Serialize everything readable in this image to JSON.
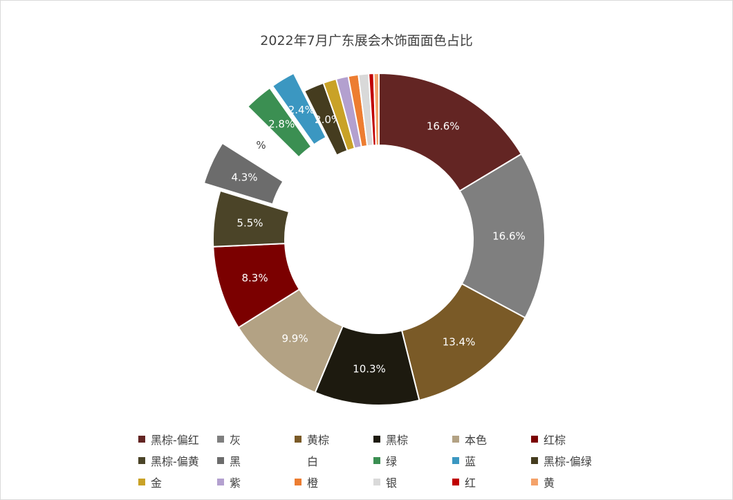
{
  "chart_data": {
    "type": "pie",
    "variant": "doughnut",
    "title": "2022年7月广东展会木饰面面色占比",
    "legend_position": "bottom",
    "series": [
      {
        "name": "黑棕-偏红",
        "value": 16.6,
        "label": "16.6%",
        "color": "#632523"
      },
      {
        "name": "灰",
        "value": 16.6,
        "label": "16.6%",
        "color": "#7f7f7f"
      },
      {
        "name": "黄棕",
        "value": 13.4,
        "label": "13.4%",
        "color": "#7a5a27"
      },
      {
        "name": "黑棕",
        "value": 10.3,
        "label": "10.3%",
        "color": "#1d1a0f"
      },
      {
        "name": "本色",
        "value": 9.9,
        "label": "9.9%",
        "color": "#b3a284"
      },
      {
        "name": "红棕",
        "value": 8.3,
        "label": "8.3%",
        "color": "#7b0000"
      },
      {
        "name": "黑棕-偏黄",
        "value": 5.5,
        "label": "5.5%",
        "color": "#4b4428"
      },
      {
        "name": "黑",
        "value": 4.3,
        "label": "4.3%",
        "color": "#6c6c6c"
      },
      {
        "name": "白",
        "value": 3.5,
        "label": "%",
        "color": "#ffffff"
      },
      {
        "name": "绿",
        "value": 2.8,
        "label": "2.8%",
        "color": "#3b8f52"
      },
      {
        "name": "蓝",
        "value": 2.4,
        "label": "2.4%",
        "color": "#3b97c1"
      },
      {
        "name": "黑棕-偏绿",
        "value": 2.0,
        "label": "2.0%",
        "color": "#453c1f"
      },
      {
        "name": "金",
        "value": 1.3,
        "label": "",
        "color": "#c9a227"
      },
      {
        "name": "紫",
        "value": 1.2,
        "label": "",
        "color": "#b3a0cf"
      },
      {
        "name": "橙",
        "value": 1.0,
        "label": "",
        "color": "#ed7d31"
      },
      {
        "name": "银",
        "value": 1.0,
        "label": "",
        "color": "#d9d9d9"
      },
      {
        "name": "红",
        "value": 0.5,
        "label": "",
        "color": "#c00000"
      },
      {
        "name": "黄",
        "value": 0.5,
        "label": "",
        "color": "#f4a26a"
      }
    ]
  }
}
